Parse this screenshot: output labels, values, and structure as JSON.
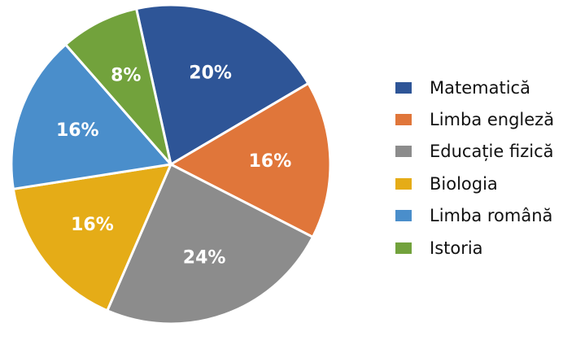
{
  "chart_data": {
    "type": "pie",
    "categories": [
      "Matematică",
      "Limba engleză",
      "Educație fizică",
      "Biologia",
      "Limba română",
      "Istoria"
    ],
    "values": [
      20,
      16,
      24,
      16,
      16,
      8
    ],
    "labels": [
      "20%",
      "16%",
      "24%",
      "16%",
      "16%",
      "8%"
    ],
    "colors": [
      "#2e5597",
      "#e0763a",
      "#8c8c8c",
      "#e5ac17",
      "#4a8ecb",
      "#72a23c"
    ],
    "start_angle_deg": 0,
    "direction": "clockwise_from_top",
    "legend_position": "right"
  }
}
